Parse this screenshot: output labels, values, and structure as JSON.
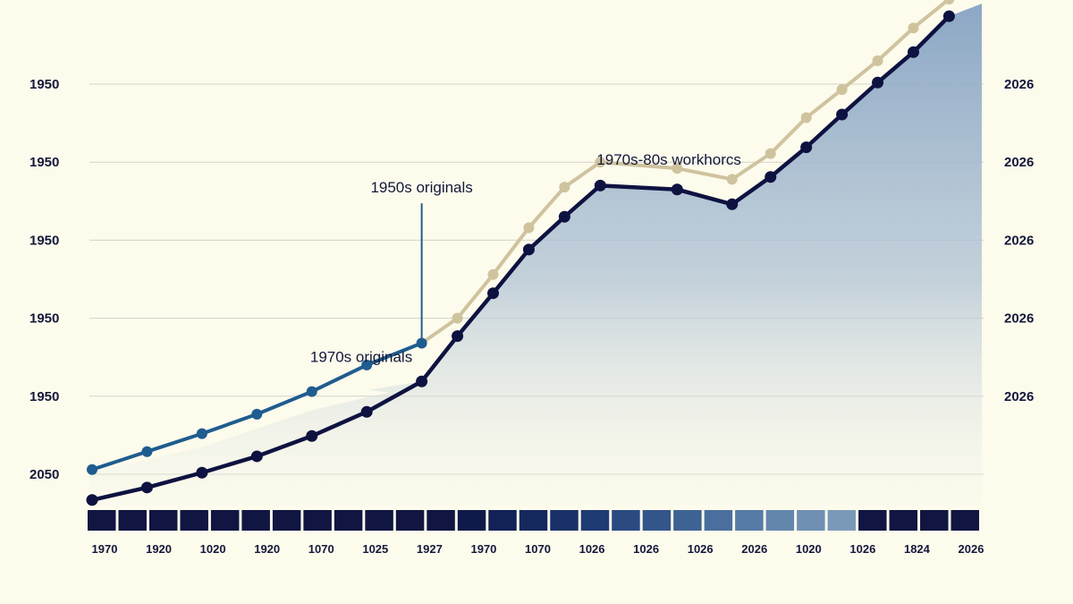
{
  "chart_data": {
    "type": "line",
    "title": "",
    "xlabel": "",
    "ylabel": "",
    "y_left_ticks": [
      "1950",
      "1950",
      "1950",
      "1950",
      "1950",
      "2050"
    ],
    "y_right_ticks": [
      "2026",
      "2026",
      "2026",
      "2026",
      "2026"
    ],
    "x_ticks": [
      "1970",
      "1920",
      "1020",
      "1920",
      "1070",
      "1025",
      "1927",
      "1970",
      "1070",
      "1026",
      "1026",
      "1026",
      "2026",
      "1020",
      "1026",
      "1824",
      "2026"
    ],
    "x_range": [
      0,
      16
    ],
    "y_range": [
      0,
      5
    ],
    "grid": true,
    "series": [
      {
        "key": "blue",
        "color": "#1f5c8f",
        "points": [
          [
            0,
            0.06
          ],
          [
            1,
            0.29
          ],
          [
            2,
            0.52
          ],
          [
            3,
            0.77
          ],
          [
            4,
            1.06
          ],
          [
            5,
            1.4
          ],
          [
            6,
            1.68
          ]
        ]
      },
      {
        "key": "tan",
        "color": "#cfc39e",
        "points": [
          [
            6,
            1.68
          ],
          [
            6.65,
            2.0
          ],
          [
            7.3,
            2.56
          ],
          [
            7.95,
            3.16
          ],
          [
            8.6,
            3.68
          ],
          [
            9.25,
            4.0
          ],
          [
            10.65,
            3.92
          ],
          [
            11.65,
            3.78
          ],
          [
            12.35,
            4.11
          ],
          [
            13.0,
            4.57
          ],
          [
            13.65,
            4.93
          ],
          [
            14.3,
            5.3
          ],
          [
            14.95,
            5.72
          ],
          [
            15.6,
            6.09
          ],
          [
            16.2,
            6.46
          ]
        ]
      },
      {
        "key": "navy",
        "color": "#0e1240",
        "points": [
          [
            0,
            -0.33
          ],
          [
            1,
            -0.17
          ],
          [
            2,
            0.02
          ],
          [
            3,
            0.23
          ],
          [
            4,
            0.49
          ],
          [
            5,
            0.8
          ],
          [
            6,
            1.19
          ],
          [
            6.65,
            1.77
          ],
          [
            7.3,
            2.32
          ],
          [
            7.95,
            2.88
          ],
          [
            8.6,
            3.3
          ],
          [
            9.25,
            3.7
          ],
          [
            10.65,
            3.65
          ],
          [
            11.65,
            3.46
          ],
          [
            12.35,
            3.81
          ],
          [
            13.0,
            4.19
          ],
          [
            13.65,
            4.61
          ],
          [
            14.3,
            5.02
          ],
          [
            14.95,
            5.41
          ],
          [
            15.6,
            5.87
          ]
        ]
      }
    ],
    "annotations": [
      {
        "text": "1950s originals",
        "x": 6,
        "y": 3.61,
        "leader_to": 1.68
      },
      {
        "text": "1970s originals",
        "x": 4.9,
        "y": 1.44
      },
      {
        "text": "1970s-80s workhorcs",
        "x": 10.5,
        "y": 3.97
      }
    ],
    "heat_strip": {
      "segments": 29,
      "colors": [
        "#101542",
        "#101542",
        "#101542",
        "#101542",
        "#101542",
        "#101542",
        "#101542",
        "#101542",
        "#101542",
        "#101542",
        "#101542",
        "#101542",
        "#0f1a4a",
        "#122256",
        "#15285e",
        "#1a3168",
        "#1f3b73",
        "#2a4a80",
        "#34558a",
        "#3e6293",
        "#4a6f9d",
        "#567ba5",
        "#6386ad",
        "#6f90b3",
        "#7a99b8",
        "#101542",
        "#101542",
        "#101542",
        "#101542"
      ]
    }
  }
}
